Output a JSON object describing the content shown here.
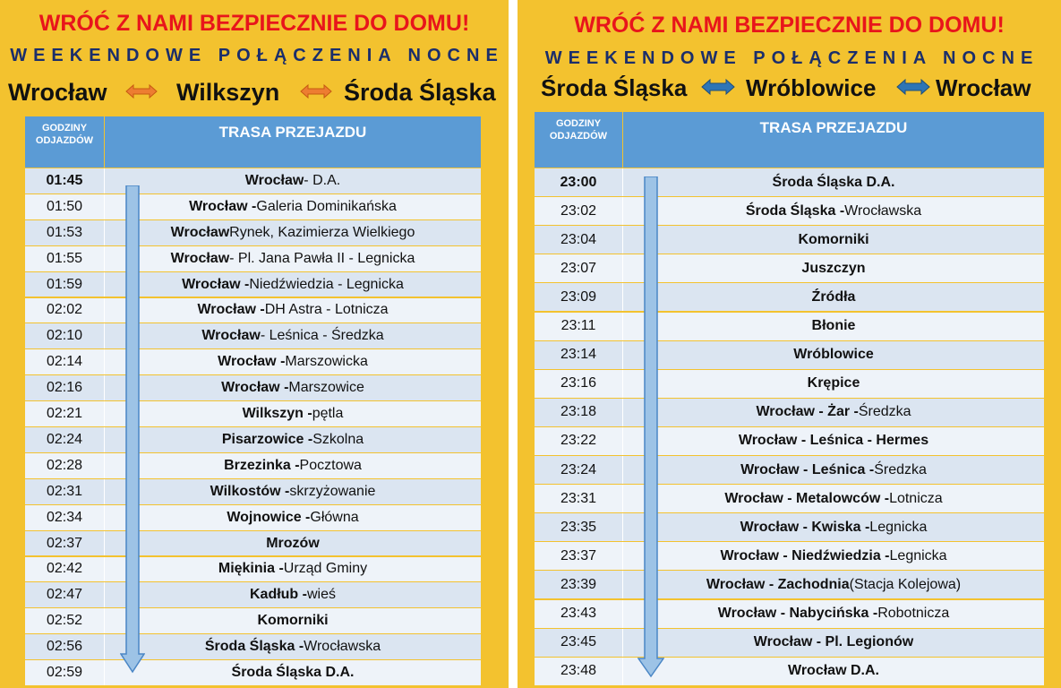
{
  "left": {
    "title": "WRÓĆ Z NAMI BEZPIECZNIE DO DOMU!",
    "subtitle": "WEEKENDOWE POŁĄCZENIA NOCNE",
    "route": [
      "Wrocław",
      "Wilkszyn",
      "Środa Śląska"
    ],
    "arrow_color": "#ed7d31",
    "header": {
      "times": "GODZINY ODJAZDÓW",
      "route": "TRASA PRZEJAZDU"
    },
    "rows": [
      {
        "time": "01:45",
        "time_bold": true,
        "bold": "Wrocław",
        "rest": " - D.A."
      },
      {
        "time": "01:50",
        "bold": "Wrocław -",
        "rest": " Galeria Dominikańska"
      },
      {
        "time": "01:53",
        "bold": "Wrocław",
        "rest": " Rynek, Kazimierza Wielkiego"
      },
      {
        "time": "01:55",
        "bold": "Wrocław",
        "rest": " - Pl. Jana Pawła II - Legnicka"
      },
      {
        "time": "01:59",
        "bold": "Wrocław -",
        "rest": " Niedźwiedzia - Legnicka"
      },
      {
        "time": "02:02",
        "bold": "Wrocław -",
        "rest": " DH Astra - Lotnicza"
      },
      {
        "time": "02:10",
        "bold": "Wrocław",
        "rest": " - Leśnica - Średzka"
      },
      {
        "time": "02:14",
        "bold": "Wrocław -",
        "rest": " Marszowicka"
      },
      {
        "time": "02:16",
        "bold": "Wrocław -",
        "rest": " Marszowice"
      },
      {
        "time": "02:21",
        "bold": "Wilkszyn -",
        "rest": " pętla"
      },
      {
        "time": "02:24",
        "bold": "Pisarzowice -",
        "rest": " Szkolna"
      },
      {
        "time": "02:28",
        "bold": "Brzezinka -",
        "rest": " Pocztowa"
      },
      {
        "time": "02:31",
        "bold": "Wilkostów -",
        "rest": " skrzyżowanie"
      },
      {
        "time": "02:34",
        "bold": "Wojnowice -",
        "rest": " Główna"
      },
      {
        "time": "02:37",
        "bold": "Mrozów",
        "rest": ""
      },
      {
        "time": "02:42",
        "bold": "Miękinia -",
        "rest": " Urząd Gminy"
      },
      {
        "time": "02:47",
        "bold": "Kadłub -",
        "rest": " wieś"
      },
      {
        "time": "02:52",
        "bold": "Komorniki",
        "rest": ""
      },
      {
        "time": "02:56",
        "bold": "Środa Śląska -",
        "rest": " Wrocławska"
      },
      {
        "time": "02:59",
        "bold": "Środa Śląska D.A.",
        "rest": ""
      }
    ]
  },
  "right": {
    "title": "WRÓĆ Z NAMI BEZPIECZNIE DO DOMU!",
    "subtitle": "WEEKENDOWE POŁĄCZENIA NOCNE",
    "route": [
      "Środa Śląska",
      "Wróblowice",
      "Wrocław"
    ],
    "arrow_color": "#2e75b6",
    "header": {
      "times": "GODZINY ODJAZDÓW",
      "route": "TRASA PRZEJAZDU"
    },
    "rows": [
      {
        "time": "23:00",
        "time_bold": true,
        "bold": "Środa Śląska D.A.",
        "rest": ""
      },
      {
        "time": "23:02",
        "bold": "Środa Śląska -",
        "rest": " Wrocławska"
      },
      {
        "time": "23:04",
        "bold": "Komorniki",
        "rest": ""
      },
      {
        "time": "23:07",
        "bold": "Juszczyn",
        "rest": ""
      },
      {
        "time": "23:09",
        "bold": "Źródła",
        "rest": ""
      },
      {
        "time": "23:11",
        "bold": "Błonie",
        "rest": ""
      },
      {
        "time": "23:14",
        "bold": "Wróblowice",
        "rest": ""
      },
      {
        "time": "23:16",
        "bold": "Krępice",
        "rest": ""
      },
      {
        "time": "23:18",
        "bold": "Wrocław - Żar -",
        "rest": " Średzka"
      },
      {
        "time": "23:22",
        "bold": "Wrocław - Leśnica - Hermes",
        "rest": ""
      },
      {
        "time": "23:24",
        "bold": "Wrocław - Leśnica -",
        "rest": " Średzka"
      },
      {
        "time": "23:31",
        "bold": "Wrocław - Metalowców -",
        "rest": " Lotnicza"
      },
      {
        "time": "23:35",
        "bold": "Wrocław - Kwiska -",
        "rest": " Legnicka"
      },
      {
        "time": "23:37",
        "bold": "Wrocław - Niedźwiedzia -",
        "rest": " Legnicka"
      },
      {
        "time": "23:39",
        "bold": "Wrocław - Zachodnia",
        "rest": " (Stacja Kolejowa)"
      },
      {
        "time": "23:43",
        "bold": "Wrocław - Nabycińska -",
        "rest": " Robotnicza"
      },
      {
        "time": "23:45",
        "bold": "Wrocław - Pl. Legionów",
        "rest": ""
      },
      {
        "time": "23:48",
        "bold": "Wrocław D.A.",
        "rest": ""
      }
    ]
  }
}
